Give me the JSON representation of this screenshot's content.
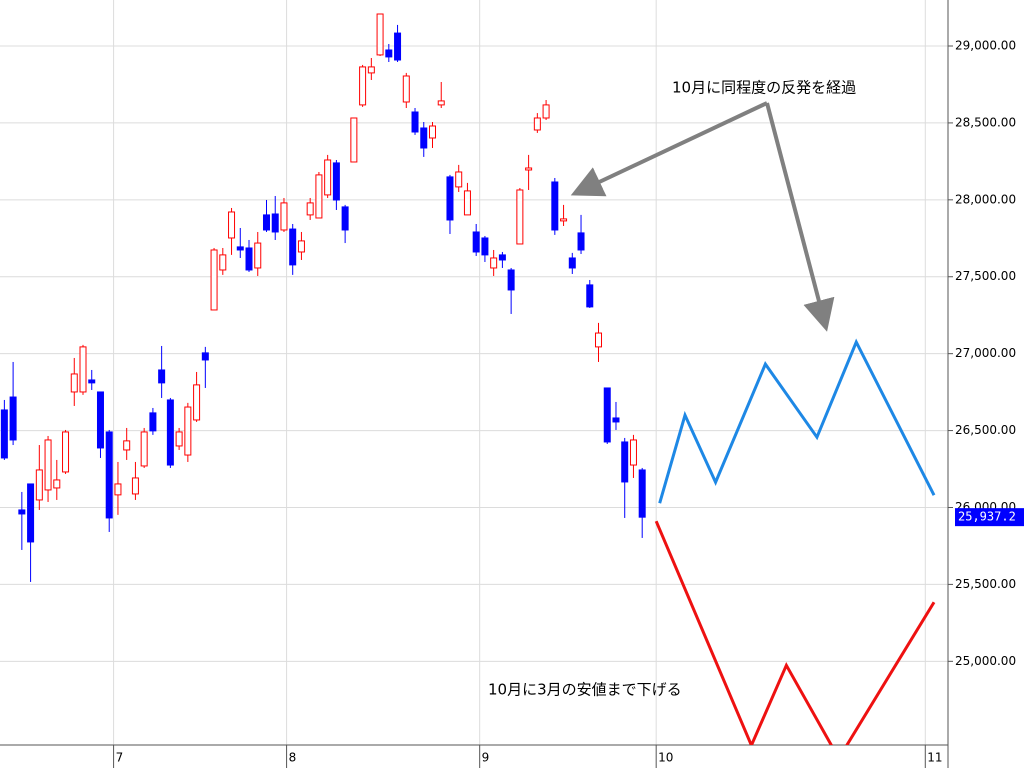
{
  "chart_data": {
    "type": "candlestick",
    "open": [
      26634,
      26718,
      25984,
      26153,
      26049,
      26114,
      26127,
      26231,
      26751,
      26751,
      26829,
      26751,
      26491,
      26082,
      26374,
      26088,
      26270,
      26615,
      26894,
      26699,
      26400,
      26341,
      26569,
      27005,
      27284,
      27544,
      27752,
      27694,
      27687,
      27557,
      27902,
      27908,
      27804,
      27810,
      27661,
      27902,
      27882,
      28032,
      28240,
      27954,
      28246,
      28617,
      28825,
      28942,
      28974,
      29084,
      28636,
      28571,
      28467,
      28402,
      28617,
      28149,
      28084,
      27902,
      27791,
      27752,
      27557,
      27642,
      27544,
      27713,
      28194,
      28454,
      28532,
      28116,
      27863,
      27622,
      27785,
      27447,
      27044,
      26777,
      26582,
      26426,
      26276,
      26244
    ],
    "high": [
      26699,
      26946,
      26101,
      26153,
      26406,
      26465,
      26309,
      26504,
      26972,
      27057,
      26894,
      26751,
      26504,
      26296,
      26517,
      26296,
      26517,
      26647,
      27050,
      26712,
      26517,
      26680,
      26881,
      27044,
      27687,
      27687,
      27947,
      27817,
      27739,
      27791,
      27999,
      28025,
      28012,
      27843,
      27791,
      28012,
      28181,
      28292,
      28259,
      27967,
      28532,
      28877,
      28922,
      29208,
      29013,
      29137,
      28825,
      28597,
      28506,
      28506,
      28766,
      28162,
      28227,
      28110,
      27843,
      27765,
      27674,
      27661,
      27557,
      28077,
      28292,
      28564,
      28649,
      28142,
      27967,
      27655,
      27902,
      27479,
      27200,
      26777,
      26686,
      26452,
      26472,
      26257
    ],
    "low": [
      26309,
      26406,
      25724,
      25516,
      25984,
      26036,
      26049,
      26218,
      26660,
      26732,
      26764,
      26322,
      25841,
      25952,
      26309,
      26049,
      26257,
      26472,
      26712,
      26257,
      26374,
      26296,
      26556,
      26777,
      27284,
      27512,
      27642,
      27622,
      27531,
      27505,
      27791,
      27739,
      27791,
      27512,
      27609,
      27869,
      27882,
      28012,
      27934,
      27719,
      28246,
      28604,
      28779,
      28935,
      28896,
      28896,
      28597,
      28422,
      28279,
      28337,
      28597,
      27778,
      28051,
      27902,
      27635,
      27596,
      27505,
      27557,
      27258,
      27713,
      28064,
      28435,
      28519,
      27772,
      27830,
      27518,
      27648,
      27297,
      26946,
      26413,
      26504,
      25932,
      26192,
      25802
    ],
    "close": [
      26322,
      26439,
      25958,
      25776,
      26244,
      26439,
      26179,
      26491,
      26868,
      27044,
      26810,
      26387,
      25932,
      26153,
      26433,
      26192,
      26491,
      26498,
      26810,
      26276,
      26491,
      26653,
      26797,
      26959,
      27674,
      27642,
      27921,
      27674,
      27544,
      27719,
      27804,
      27791,
      27980,
      27577,
      27733,
      27980,
      28162,
      28259,
      27999,
      27804,
      28532,
      28864,
      28864,
      29208,
      28929,
      28909,
      28805,
      28441,
      28337,
      28480,
      28643,
      27869,
      28181,
      28058,
      27661,
      27642,
      27622,
      27609,
      27414,
      28064,
      28207,
      28532,
      28617,
      27804,
      27876,
      27557,
      27674,
      27304,
      27134,
      26426,
      26556,
      26166,
      26439,
      25937
    ],
    "up_color": "#ff0000",
    "down_color": "#0000ff",
    "series": [
      {
        "color": "#1e88e5",
        "x": [
          75,
          77.9,
          81.4,
          87.1,
          93,
          97.5,
          106.4
        ],
        "values": [
          26028,
          26600,
          26164,
          26932,
          26457,
          27075,
          26080
        ]
      },
      {
        "color": "#ee1111",
        "x": [
          74.6,
          85.5,
          89.5,
          95.5,
          106.4
        ],
        "values": [
          25911,
          24454,
          24974,
          24369,
          25384
        ]
      }
    ],
    "xlim": [
      -0.5,
      108
    ],
    "ylim": [
      24456,
      29299
    ],
    "xticks": [
      {
        "value": 12.5,
        "label": "7"
      },
      {
        "value": 32.3,
        "label": "8"
      },
      {
        "value": 54.4,
        "label": "9"
      },
      {
        "value": 74.6,
        "label": "10"
      },
      {
        "value": 105.4,
        "label": "11"
      }
    ],
    "yticks": [
      {
        "value": 29000,
        "label": "29,000.00"
      },
      {
        "value": 28500,
        "label": "28,500.00"
      },
      {
        "value": 28000,
        "label": "28,000.00"
      },
      {
        "value": 27500,
        "label": "27,500.00"
      },
      {
        "value": 27000,
        "label": "27,000.00"
      },
      {
        "value": 26500,
        "label": "26,500.00"
      },
      {
        "value": 26000,
        "label": "26,000.00"
      },
      {
        "value": 25500,
        "label": "25,500.00"
      },
      {
        "value": 25000,
        "label": "25,000.00"
      }
    ],
    "last_price": {
      "value": 25937.2,
      "label": "25,937.2"
    },
    "annotations": [
      "10月に同程度の反発を経過",
      "10月に3月の安値まで下げる"
    ],
    "grid": true
  }
}
